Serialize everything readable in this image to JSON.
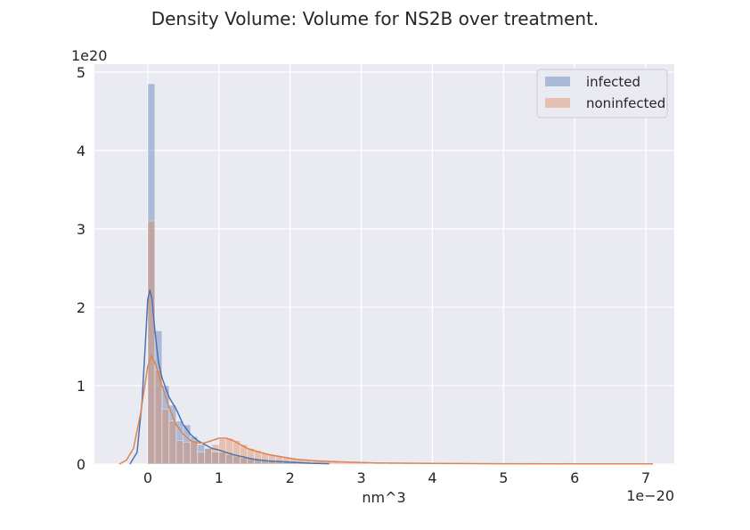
{
  "chart_data": {
    "type": "histogram",
    "title": "Density Volume: Volume for NS2B over treatment.",
    "xlabel": "nm^3",
    "ylabel": "",
    "x_offset_text": "1e−20",
    "y_offset_text": "1e20",
    "xlim": [
      -0.75,
      7.4
    ],
    "ylim": [
      0,
      5.1
    ],
    "xticks": [
      0,
      1,
      2,
      3,
      4,
      5,
      6,
      7
    ],
    "yticks": [
      0,
      1,
      2,
      3,
      4,
      5
    ],
    "grid": true,
    "legend_position": "top-right",
    "series": [
      {
        "name": "infected",
        "color": "#4c72b0",
        "bin_width": 0.1,
        "bins_x": [
          0.0,
          0.1,
          0.2,
          0.3,
          0.4,
          0.5,
          0.6,
          0.7,
          0.8,
          0.9,
          1.0,
          1.1,
          1.2,
          1.3,
          1.4,
          1.5,
          1.6,
          1.7,
          1.8,
          1.9,
          2.0,
          2.1,
          2.2,
          2.3,
          2.4
        ],
        "bins_density": [
          4.85,
          1.7,
          1.0,
          0.75,
          0.55,
          0.5,
          0.35,
          0.25,
          0.2,
          0.15,
          0.15,
          0.12,
          0.1,
          0.08,
          0.07,
          0.06,
          0.05,
          0.04,
          0.03,
          0.03,
          0.02,
          0.02,
          0.02,
          0.01,
          0.01
        ],
        "kde_x": [
          -0.25,
          -0.15,
          -0.08,
          -0.03,
          0.0,
          0.03,
          0.06,
          0.1,
          0.15,
          0.2,
          0.3,
          0.4,
          0.5,
          0.6,
          0.7,
          0.8,
          0.9,
          1.0,
          1.1,
          1.2,
          1.3,
          1.4,
          1.5,
          1.7,
          1.9,
          2.1,
          2.3,
          2.55
        ],
        "kde_y": [
          0.0,
          0.15,
          0.8,
          1.6,
          2.1,
          2.22,
          2.1,
          1.7,
          1.3,
          1.1,
          0.85,
          0.7,
          0.5,
          0.38,
          0.3,
          0.25,
          0.2,
          0.18,
          0.15,
          0.12,
          0.1,
          0.08,
          0.06,
          0.04,
          0.03,
          0.02,
          0.01,
          0.005
        ]
      },
      {
        "name": "noninfected",
        "color": "#dd8452",
        "bin_width": 0.1,
        "bins_x": [
          0.0,
          0.1,
          0.2,
          0.3,
          0.4,
          0.5,
          0.6,
          0.7,
          0.8,
          0.9,
          1.0,
          1.1,
          1.2,
          1.3,
          1.4,
          1.5,
          1.6,
          1.7,
          1.8,
          1.9,
          2.0,
          2.1,
          2.2,
          2.3,
          2.4,
          2.5,
          2.6,
          2.7,
          2.8,
          2.9,
          3.0,
          3.2,
          3.4,
          3.6,
          3.8,
          4.0,
          4.2
        ],
        "bins_density": [
          3.1,
          1.2,
          0.7,
          0.55,
          0.3,
          0.28,
          0.3,
          0.15,
          0.2,
          0.25,
          0.32,
          0.33,
          0.3,
          0.25,
          0.2,
          0.17,
          0.14,
          0.12,
          0.1,
          0.08,
          0.07,
          0.06,
          0.05,
          0.04,
          0.04,
          0.03,
          0.03,
          0.02,
          0.02,
          0.02,
          0.02,
          0.015,
          0.012,
          0.01,
          0.008,
          0.006,
          0.005
        ],
        "kde_x": [
          -0.4,
          -0.3,
          -0.2,
          -0.1,
          0.0,
          0.05,
          0.1,
          0.2,
          0.3,
          0.4,
          0.5,
          0.6,
          0.7,
          0.8,
          0.9,
          1.0,
          1.1,
          1.2,
          1.3,
          1.4,
          1.5,
          1.7,
          1.9,
          2.1,
          2.4,
          2.8,
          3.2,
          4.0,
          5.0,
          6.0,
          7.1
        ],
        "kde_y": [
          0.0,
          0.05,
          0.2,
          0.65,
          1.25,
          1.38,
          1.3,
          1.0,
          0.72,
          0.5,
          0.38,
          0.3,
          0.27,
          0.27,
          0.3,
          0.33,
          0.33,
          0.3,
          0.25,
          0.2,
          0.17,
          0.12,
          0.09,
          0.06,
          0.04,
          0.025,
          0.015,
          0.008,
          0.005,
          0.003,
          0.002
        ]
      }
    ]
  }
}
